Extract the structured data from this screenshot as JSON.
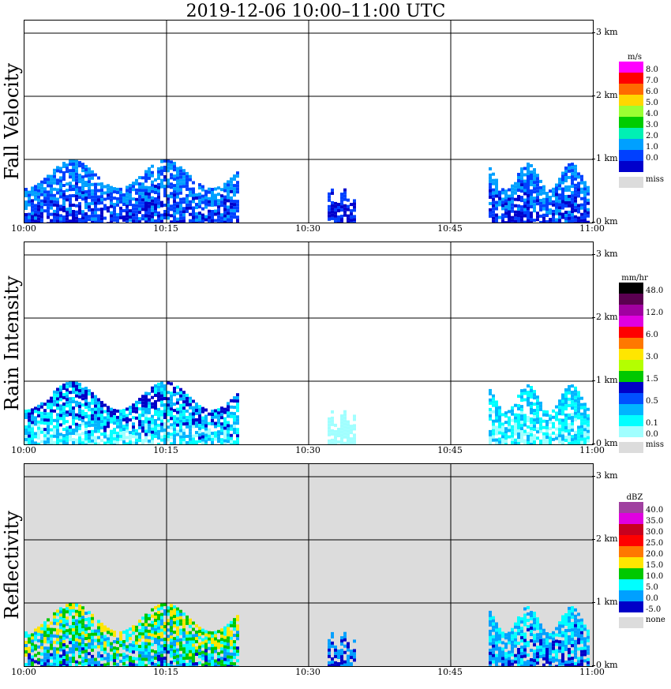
{
  "title": "2019-12-06   10:00–11:00 UTC",
  "time_ticks": [
    "10:00",
    "10:15",
    "10:30",
    "10:45",
    "11:00"
  ],
  "height_labels": [
    "3 km",
    "2 km",
    "1 km",
    "0 km"
  ],
  "chart_data": [
    {
      "type": "heatmap",
      "ylabel": "Fall Velocity",
      "unit": "m/s",
      "x": [
        "10:00",
        "10:15",
        "10:30",
        "10:45",
        "11:00"
      ],
      "ylim": [
        0,
        3.2
      ],
      "background": "#ffffff",
      "missing_label": "miss",
      "colorbar": [
        {
          "label": "8.0",
          "color": "#ff00ff"
        },
        {
          "label": "7.0",
          "color": "#ff0000"
        },
        {
          "label": "6.0",
          "color": "#ff6a00"
        },
        {
          "label": "5.0",
          "color": "#ffd700"
        },
        {
          "label": "4.0",
          "color": "#9bff32"
        },
        {
          "label": "3.0",
          "color": "#00cc00"
        },
        {
          "label": "2.0",
          "color": "#00f0b4"
        },
        {
          "label": "1.0",
          "color": "#00a0ff"
        },
        {
          "label": "0.0",
          "color": "#0040ff"
        },
        {
          "label": "",
          "color": "#0000cc"
        }
      ],
      "echoes": [
        {
          "start_min": 0,
          "end_min": 22.5,
          "top_km": 1.0,
          "colors": [
            "#0000cc",
            "#0040ff",
            "#00a0ff"
          ]
        },
        {
          "start_min": 32,
          "end_min": 35,
          "top_km": 0.55,
          "colors": [
            "#0000cc",
            "#0040ff"
          ]
        },
        {
          "start_min": 49,
          "end_min": 59.5,
          "top_km": 0.95,
          "colors": [
            "#0000cc",
            "#0040ff",
            "#00a0ff"
          ]
        }
      ]
    },
    {
      "type": "heatmap",
      "ylabel": "Rain Intensity",
      "unit": "mm/hr",
      "x": [
        "10:00",
        "10:15",
        "10:30",
        "10:45",
        "11:00"
      ],
      "ylim": [
        0,
        3.2
      ],
      "background": "#ffffff",
      "missing_label": "miss",
      "colorbar": [
        {
          "label": "48.0",
          "color": "#000000"
        },
        {
          "label": "",
          "color": "#5a0050"
        },
        {
          "label": "12.0",
          "color": "#a000a0"
        },
        {
          "label": "",
          "color": "#e000e0"
        },
        {
          "label": "6.0",
          "color": "#ff0000"
        },
        {
          "label": "",
          "color": "#ff7800"
        },
        {
          "label": "3.0",
          "color": "#ffe600"
        },
        {
          "label": "",
          "color": "#b4ff00"
        },
        {
          "label": "1.5",
          "color": "#00c800"
        },
        {
          "label": "",
          "color": "#0000c8"
        },
        {
          "label": "0.5",
          "color": "#0050ff"
        },
        {
          "label": "",
          "color": "#00b4ff"
        },
        {
          "label": "0.1",
          "color": "#00ffff"
        },
        {
          "label": "0.0",
          "color": "#a0ffff"
        }
      ],
      "echoes": [
        {
          "start_min": 0,
          "end_min": 22.5,
          "top_km": 1.0,
          "colors": [
            "#a0ffff",
            "#00ffff",
            "#00b4ff",
            "#0000c8"
          ]
        },
        {
          "start_min": 32,
          "end_min": 35,
          "top_km": 0.55,
          "colors": [
            "#a0ffff"
          ]
        },
        {
          "start_min": 49,
          "end_min": 59.5,
          "top_km": 0.95,
          "colors": [
            "#a0ffff",
            "#00ffff",
            "#00b4ff"
          ]
        }
      ]
    },
    {
      "type": "heatmap",
      "ylabel": "Reflectivity",
      "unit": "dBZ",
      "x": [
        "10:00",
        "10:15",
        "10:30",
        "10:45",
        "11:00"
      ],
      "ylim": [
        0,
        3.2
      ],
      "background": "#dcdcdc",
      "missing_label": "none",
      "colorbar": [
        {
          "label": "40.0",
          "color": "#a040a0"
        },
        {
          "label": "35.0",
          "color": "#e000e0"
        },
        {
          "label": "30.0",
          "color": "#c8001e"
        },
        {
          "label": "25.0",
          "color": "#ff0000"
        },
        {
          "label": "20.0",
          "color": "#ff7800"
        },
        {
          "label": "15.0",
          "color": "#ffe600"
        },
        {
          "label": "10.0",
          "color": "#00c800"
        },
        {
          "label": "5.0",
          "color": "#00ffff"
        },
        {
          "label": "0.0",
          "color": "#00a0ff"
        },
        {
          "label": "-5.0",
          "color": "#0000c8"
        }
      ],
      "echoes": [
        {
          "start_min": 0,
          "end_min": 22.5,
          "top_km": 1.0,
          "colors": [
            "#0000c8",
            "#00a0ff",
            "#00ffff",
            "#00c800",
            "#ffe600"
          ]
        },
        {
          "start_min": 32,
          "end_min": 35,
          "top_km": 0.55,
          "colors": [
            "#0000c8",
            "#00a0ff"
          ]
        },
        {
          "start_min": 49,
          "end_min": 59.5,
          "top_km": 0.95,
          "colors": [
            "#0000c8",
            "#00a0ff",
            "#00ffff"
          ]
        }
      ]
    }
  ]
}
